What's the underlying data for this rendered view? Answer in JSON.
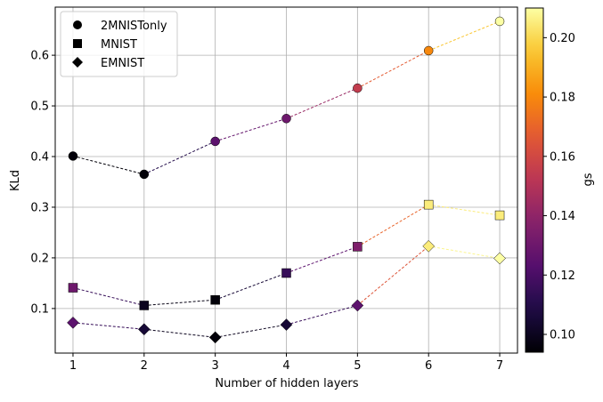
{
  "chart_data": {
    "type": "scatter",
    "xlabel": "Number of hidden layers",
    "ylabel": "KLd",
    "x": [
      1,
      2,
      3,
      4,
      5,
      6,
      7
    ],
    "xlim": [
      0.75,
      7.25
    ],
    "ylim": [
      0.012,
      0.695
    ],
    "xticks": [
      "1",
      "2",
      "3",
      "4",
      "5",
      "6",
      "7"
    ],
    "yticks": [
      "0.1",
      "0.2",
      "0.3",
      "0.4",
      "0.5",
      "0.6"
    ],
    "ytick_values": [
      0.1,
      0.2,
      0.3,
      0.4,
      0.5,
      0.6
    ],
    "grid": true,
    "legend_position": "top-left",
    "series": [
      {
        "name": "2MNISTonly",
        "marker": "circle",
        "values": [
          0.401,
          0.365,
          0.43,
          0.475,
          0.535,
          0.609,
          0.667
        ],
        "gs": [
          0.095,
          0.095,
          0.125,
          0.13,
          0.155,
          0.18,
          0.21
        ]
      },
      {
        "name": "MNIST",
        "marker": "square",
        "values": [
          0.141,
          0.106,
          0.117,
          0.17,
          0.222,
          0.305,
          0.284
        ],
        "gs": [
          0.13,
          0.1,
          0.095,
          0.115,
          0.135,
          0.205,
          0.205
        ]
      },
      {
        "name": "EMNIST",
        "marker": "diamond",
        "values": [
          0.072,
          0.059,
          0.043,
          0.068,
          0.106,
          0.223,
          0.199
        ],
        "gs": [
          0.125,
          0.105,
          0.095,
          0.105,
          0.125,
          0.205,
          0.21
        ]
      }
    ],
    "legend_marker_color": "#000000",
    "colorbar": {
      "label": "gs",
      "min": 0.094,
      "max": 0.21,
      "ticks": [
        "0.10",
        "0.12",
        "0.14",
        "0.16",
        "0.18",
        "0.20"
      ],
      "tick_values": [
        0.1,
        0.12,
        0.14,
        0.16,
        0.18,
        0.2
      ],
      "colormap": "inferno"
    }
  }
}
